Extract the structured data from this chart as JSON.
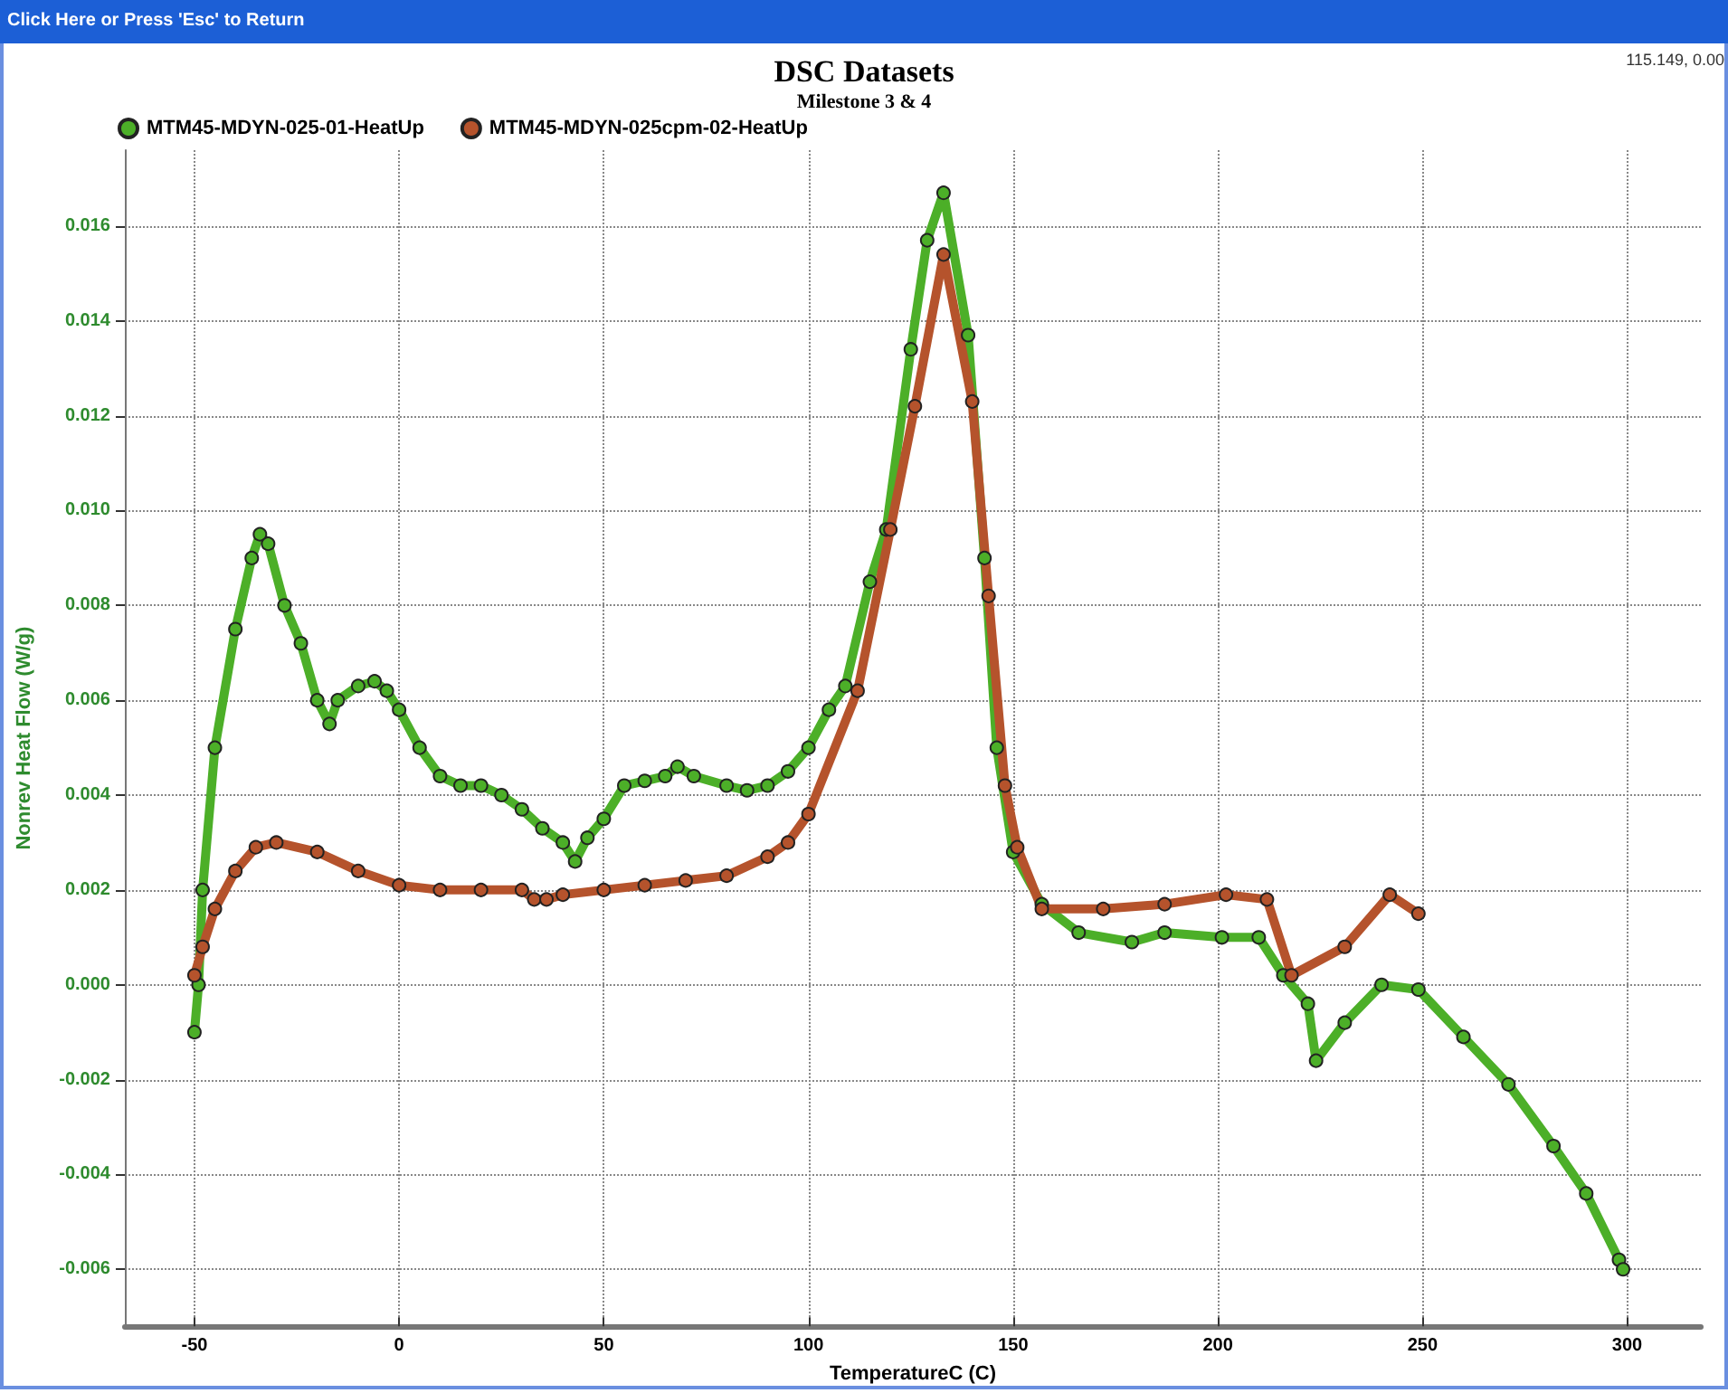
{
  "chart_data": {
    "type": "line",
    "title": "DSC Datasets",
    "subtitle": "Milestone 3 & 4",
    "xlabel": "TemperatureC (C)",
    "ylabel": "Nonrev Heat Flow (W/g)",
    "annotations": [
      "Click Here or Press 'Esc' to Return",
      "115.149, 0.00"
    ],
    "xlim": [
      -67,
      318
    ],
    "xticks": [
      -50,
      0,
      50,
      100,
      150,
      200,
      250,
      300
    ],
    "ylim": [
      -0.0072,
      0.0176
    ],
    "yticks": [
      -0.006,
      -0.004,
      -0.002,
      {
        "value": 0,
        "label": "0.000"
      },
      0.002,
      0.004,
      0.006,
      0.008,
      {
        "value": 0.01,
        "label": "0.010"
      },
      0.012,
      0.014,
      0.016
    ],
    "grid": true,
    "legend": "top left",
    "marker": "circle",
    "series": [
      {
        "name": "MTM45-MDYN-025-01-HeatUp",
        "color": "#4caf28",
        "x": [
          -50,
          -49,
          -48,
          -45,
          -40,
          -36,
          -34,
          -32,
          -28,
          -24,
          -20,
          -17,
          -15,
          -10,
          -6,
          -3,
          0,
          5,
          10,
          15,
          20,
          25,
          30,
          35,
          40,
          43,
          46,
          50,
          55,
          60,
          65,
          68,
          72,
          80,
          85,
          90,
          95,
          100,
          105,
          109,
          115,
          119,
          125,
          129,
          133,
          139,
          143,
          146,
          150,
          157,
          166,
          179,
          187,
          201,
          210,
          216,
          222,
          224,
          231,
          240,
          249,
          260,
          271,
          282,
          290,
          298,
          299
        ],
        "values": [
          -0.001,
          0.0,
          0.002,
          0.005,
          0.0075,
          0.009,
          0.0095,
          0.0093,
          0.008,
          0.0072,
          0.006,
          0.0055,
          0.006,
          0.0063,
          0.0064,
          0.0062,
          0.0058,
          0.005,
          0.0044,
          0.0042,
          0.0042,
          0.004,
          0.0037,
          0.0033,
          0.003,
          0.0026,
          0.0031,
          0.0035,
          0.0042,
          0.0043,
          0.0044,
          0.0046,
          0.0044,
          0.0042,
          0.0041,
          0.0042,
          0.0045,
          0.005,
          0.0058,
          0.0063,
          0.0085,
          0.0096,
          0.0134,
          0.0157,
          0.0167,
          0.0137,
          0.009,
          0.005,
          0.0028,
          0.0017,
          0.0011,
          0.0009,
          0.0011,
          0.001,
          0.001,
          0.0002,
          -0.0004,
          -0.0016,
          -0.0008,
          0.0,
          -0.0001,
          -0.0011,
          -0.0021,
          -0.0034,
          -0.0044,
          -0.0058,
          -0.006
        ]
      },
      {
        "name": "MTM45-MDYN-025cpm-02-HeatUp",
        "color": "#b5532c",
        "x": [
          -50,
          -48,
          -45,
          -40,
          -35,
          -30,
          -20,
          -10,
          0,
          10,
          20,
          30,
          33,
          36,
          40,
          50,
          60,
          70,
          80,
          90,
          95,
          100,
          112,
          120,
          126,
          133,
          140,
          144,
          148,
          151,
          157,
          172,
          187,
          202,
          212,
          218,
          231,
          242,
          249
        ],
        "values": [
          0.0002,
          0.0008,
          0.0016,
          0.0024,
          0.0029,
          0.003,
          0.0028,
          0.0024,
          0.0021,
          0.002,
          0.002,
          0.002,
          0.0018,
          0.0018,
          0.0019,
          0.002,
          0.0021,
          0.0022,
          0.0023,
          0.0027,
          0.003,
          0.0036,
          0.0062,
          0.0096,
          0.0122,
          0.0154,
          0.0123,
          0.0082,
          0.0042,
          0.0029,
          0.0016,
          0.0016,
          0.0017,
          0.0019,
          0.0018,
          0.0002,
          0.0008,
          0.0019,
          0.0015
        ]
      }
    ]
  }
}
